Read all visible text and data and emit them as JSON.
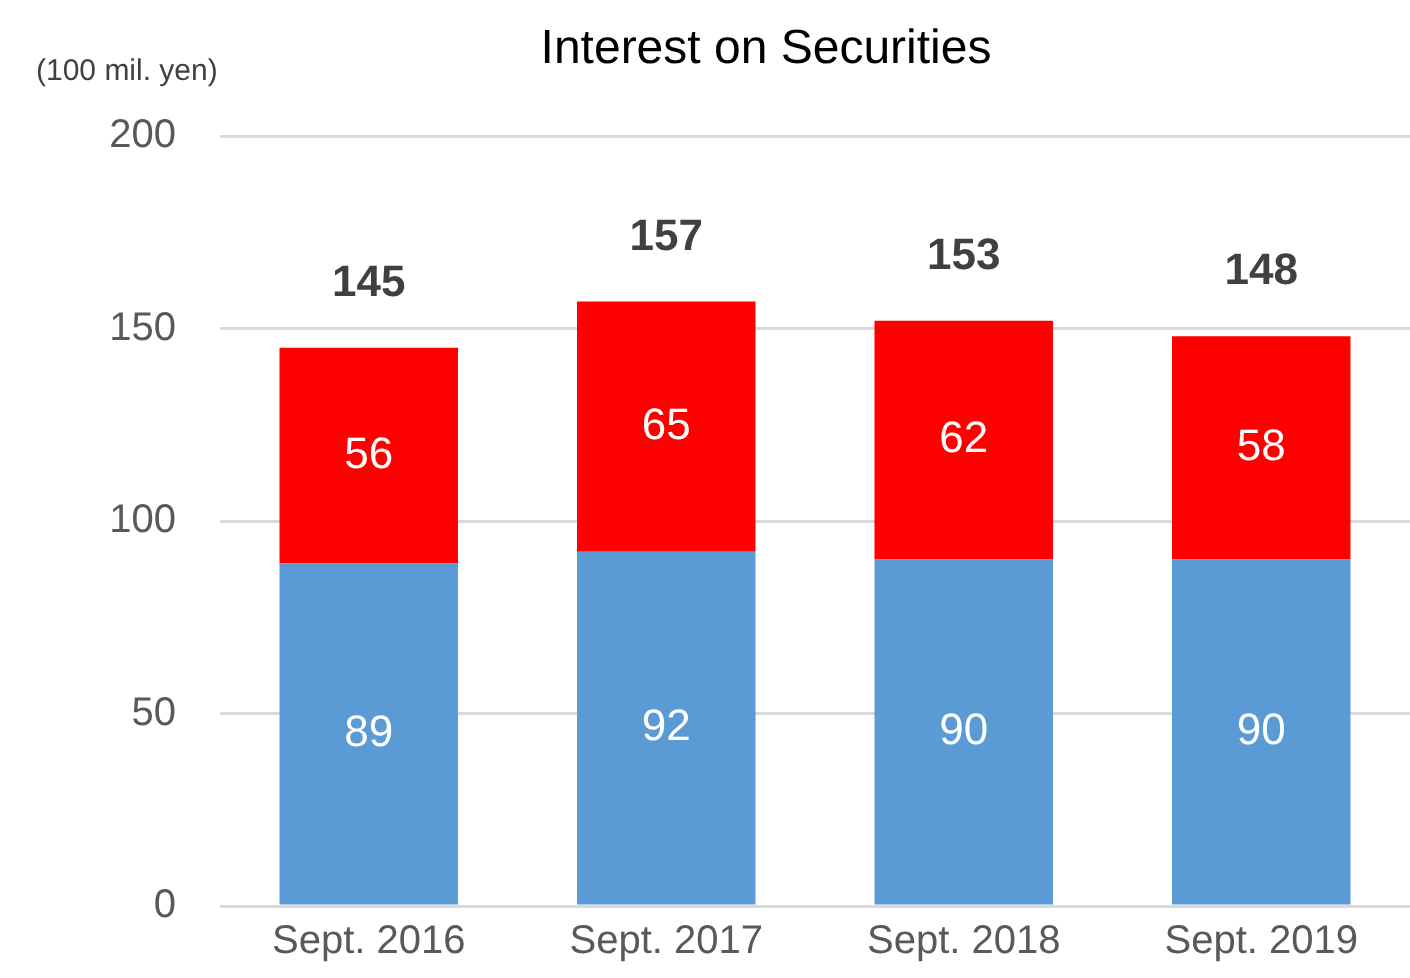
{
  "chart_data": {
    "type": "bar",
    "title": "Interest on Securities",
    "ylabel": "(100 mil. yen)",
    "categories": [
      "Sept. 2016",
      "Sept. 2017",
      "Sept. 2018",
      "Sept. 2019"
    ],
    "series": [
      {
        "color": "#5b9bd5",
        "values": [
          89,
          92,
          90,
          90
        ]
      },
      {
        "color": "#ff0000",
        "values": [
          56,
          65,
          62,
          58
        ]
      }
    ],
    "stacked": true,
    "data_labels": true,
    "totals": [
      "145",
      "157",
      "153",
      "148"
    ],
    "ylim": [
      0,
      200
    ],
    "yticks": [
      0,
      50,
      100,
      150,
      200
    ],
    "grid": "y",
    "legend": false
  }
}
